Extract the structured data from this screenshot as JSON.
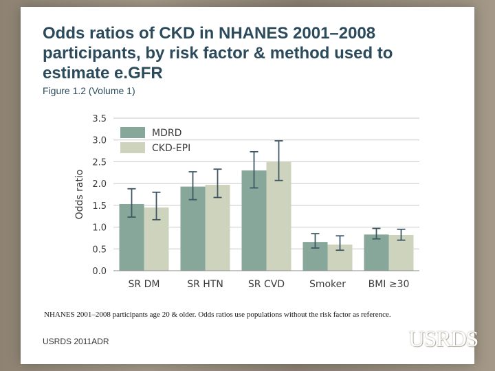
{
  "slide": {
    "title": "Odds ratios of CKD in NHANES 2001–2008 participants, by risk factor & method used to estimate e.GFR",
    "subtitle": "Figure 1.2 (Volume 1)",
    "footnote": "NHANES 2001–2008 participants age 20 & older. Odds ratios use populations without the risk factor as reference.",
    "source": "USRDS 2011ADR",
    "logo_text": "USRDS"
  },
  "colors": {
    "mdrd": "#87a79a",
    "ckd_epi": "#cdd3bd",
    "error_bar": "#3f5764",
    "grid": "#c9c9c9",
    "axis_text": "#3a3a3a"
  },
  "chart_data": {
    "type": "bar",
    "title": "",
    "xlabel": "",
    "ylabel": "Odds ratio",
    "ylim": [
      0,
      3.5
    ],
    "yticks": [
      "0.0",
      "0.5",
      "1.0",
      "1.5",
      "2.0",
      "2.5",
      "3.0",
      "3.5"
    ],
    "categories": [
      "SR DM",
      "SR HTN",
      "SR CVD",
      "Smoker",
      "BMI ≥30"
    ],
    "series": [
      {
        "name": "MDRD",
        "values": [
          1.53,
          1.93,
          2.3,
          0.66,
          0.83
        ],
        "ci_low": [
          1.23,
          1.63,
          1.9,
          0.52,
          0.73
        ],
        "ci_high": [
          1.88,
          2.27,
          2.73,
          0.85,
          0.97
        ]
      },
      {
        "name": "CKD-EPI",
        "values": [
          1.45,
          1.97,
          2.5,
          0.6,
          0.82
        ],
        "ci_low": [
          1.17,
          1.68,
          2.07,
          0.47,
          0.7
        ],
        "ci_high": [
          1.8,
          2.33,
          2.98,
          0.8,
          0.95
        ]
      }
    ],
    "legend": "top-left inside plot",
    "grid": true
  }
}
